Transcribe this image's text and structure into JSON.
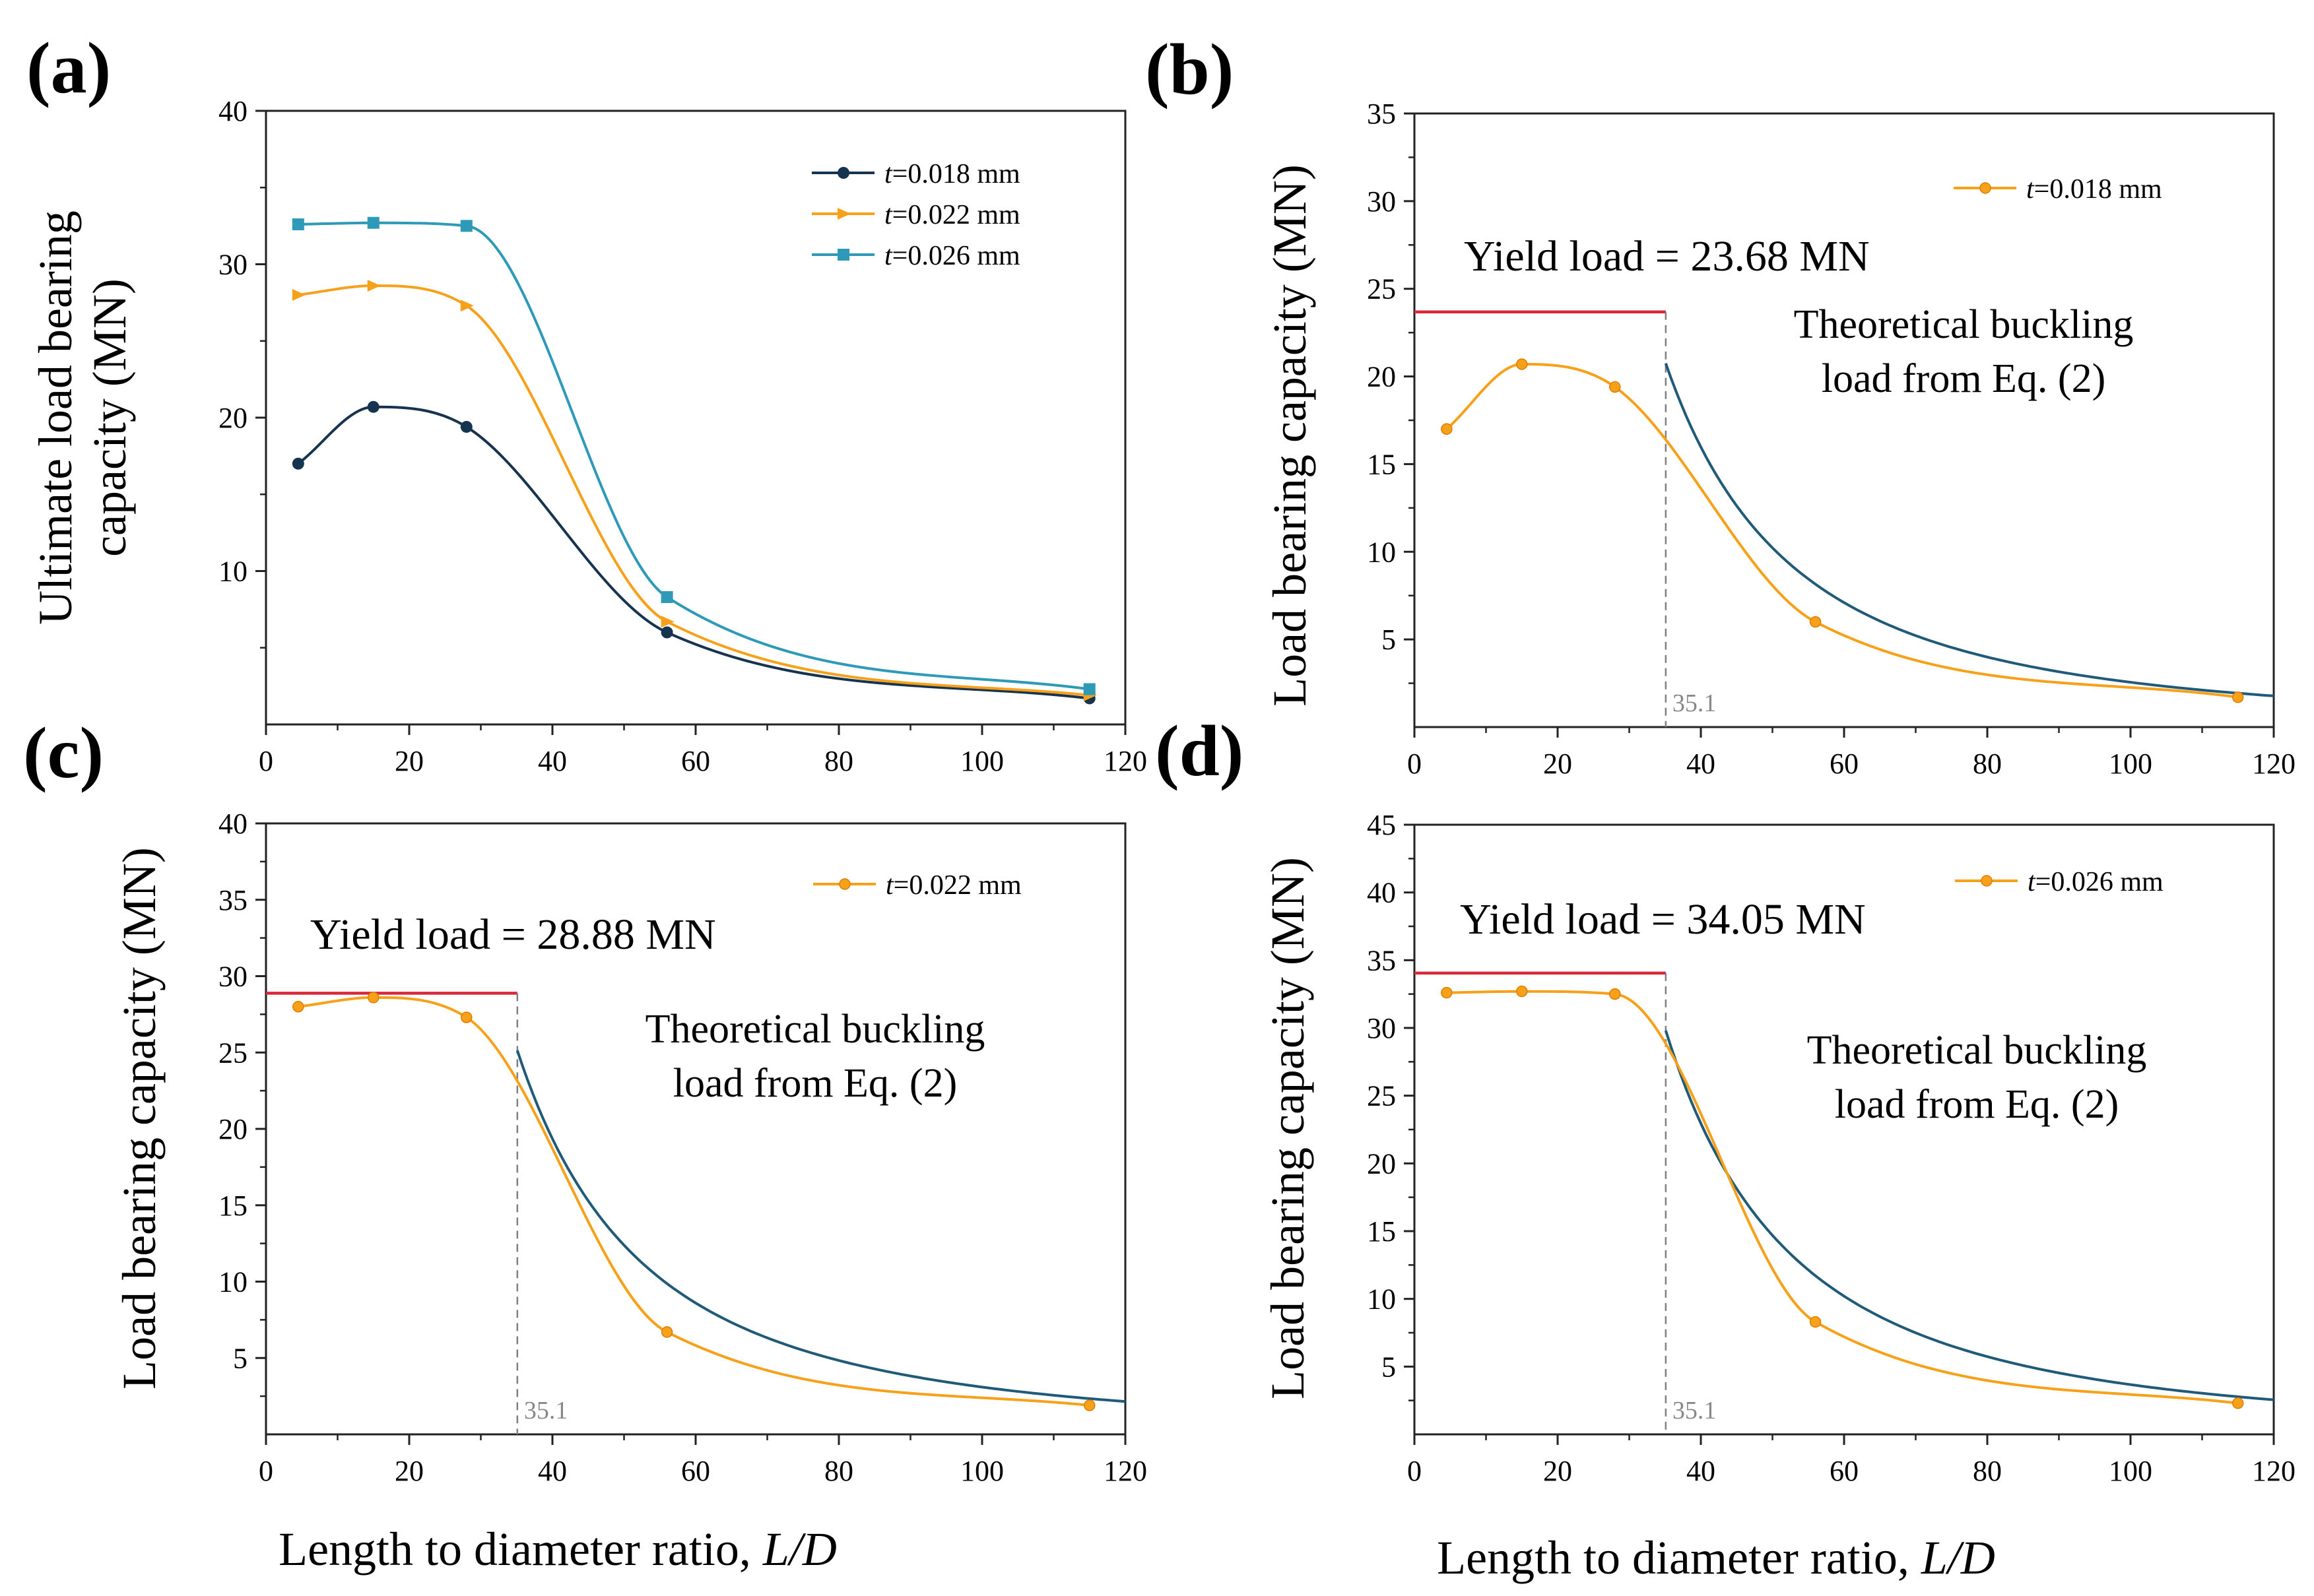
{
  "figure": {
    "xlabel_prefix": "Length to diameter ratio, ",
    "xlabel_var": "L/D"
  },
  "chart_data": [
    {
      "panel": "(a)",
      "type": "line",
      "ylabel_lines": [
        "Ultimate load bearing",
        "capacity (MN)"
      ],
      "xlim": [
        0,
        120
      ],
      "ylim": [
        0,
        40
      ],
      "xticks": [
        "0",
        "20",
        "40",
        "60",
        "80",
        "100",
        "120"
      ],
      "yticks": [
        "10",
        "20",
        "30",
        "40"
      ],
      "x": [
        4.5,
        15,
        28,
        56,
        115
      ],
      "legend_position": "top-right",
      "series": [
        {
          "name": "t=0.018 mm",
          "color": "#16344f",
          "marker": "circle",
          "values": [
            17.0,
            20.7,
            19.4,
            6.0,
            1.7
          ]
        },
        {
          "name": "t=0.022 mm",
          "color": "#f7a11a",
          "marker": "triangle",
          "values": [
            28.0,
            28.6,
            27.3,
            6.7,
            1.9
          ]
        },
        {
          "name": "t=0.026 mm",
          "color": "#2e9ab8",
          "marker": "square",
          "values": [
            32.6,
            32.7,
            32.5,
            8.3,
            2.3
          ]
        }
      ]
    },
    {
      "panel": "(b)",
      "type": "line",
      "ylabel_lines": [
        "Load bearing capacity (MN)"
      ],
      "xlim": [
        0,
        120
      ],
      "ylim": [
        0,
        35
      ],
      "xticks": [
        "0",
        "20",
        "40",
        "60",
        "80",
        "100",
        "120"
      ],
      "yticks": [
        "5",
        "10",
        "15",
        "20",
        "25",
        "30",
        "35"
      ],
      "legend_position": "top-right",
      "series": [
        {
          "name": "t=0.018 mm",
          "color": "#f7a11a",
          "x": [
            4.5,
            15,
            28,
            56,
            115
          ],
          "values": [
            17.0,
            20.7,
            19.4,
            6.0,
            1.7
          ]
        }
      ],
      "yield_load": 23.68,
      "yield_text": "Yield load = 23.68 MN",
      "buckling_text": [
        "Theoretical buckling",
        "load from Eq. (2)"
      ],
      "buckling_curve": {
        "x_start": 35.1,
        "x_end": 120,
        "values_at": {
          "35.1": 20.8,
          "60": 7.1,
          "120": 1.8
        }
      },
      "vline_x": 35.1,
      "vline_label": "35.1"
    },
    {
      "panel": "(c)",
      "type": "line",
      "ylabel_lines": [
        "Load bearing capacity (MN)"
      ],
      "xlim": [
        0,
        120
      ],
      "ylim": [
        0,
        40
      ],
      "xticks": [
        "0",
        "20",
        "40",
        "60",
        "80",
        "100",
        "120"
      ],
      "yticks": [
        "5",
        "10",
        "15",
        "20",
        "25",
        "30",
        "35",
        "40"
      ],
      "legend_position": "top-right",
      "series": [
        {
          "name": "t=0.022 mm",
          "color": "#f7a11a",
          "x": [
            4.5,
            15,
            28,
            56,
            115
          ],
          "values": [
            28.0,
            28.6,
            27.3,
            6.7,
            1.9
          ]
        }
      ],
      "yield_load": 28.88,
      "yield_text": "Yield load = 28.88 MN",
      "buckling_text": [
        "Theoretical buckling",
        "load from Eq. (2)"
      ],
      "buckling_curve": {
        "x_start": 35.1,
        "x_end": 120,
        "values_at": {
          "35.1": 25.3,
          "60": 8.6,
          "120": 2.2
        }
      },
      "vline_x": 35.1,
      "vline_label": "35.1"
    },
    {
      "panel": "(d)",
      "type": "line",
      "ylabel_lines": [
        "Load bearing capacity (MN)"
      ],
      "xlim": [
        0,
        120
      ],
      "ylim": [
        0,
        45
      ],
      "xticks": [
        "0",
        "20",
        "40",
        "60",
        "80",
        "100",
        "120"
      ],
      "yticks": [
        "5",
        "10",
        "15",
        "20",
        "25",
        "30",
        "35",
        "40",
        "45"
      ],
      "legend_position": "top-right",
      "series": [
        {
          "name": "t=0.026 mm",
          "color": "#f7a11a",
          "x": [
            4.5,
            15,
            28,
            56,
            115
          ],
          "values": [
            32.6,
            32.7,
            32.5,
            8.3,
            2.3
          ]
        }
      ],
      "yield_load": 34.05,
      "yield_text": "Yield load = 34.05 MN",
      "buckling_text": [
        "Theoretical buckling",
        "load from Eq. (2)"
      ],
      "buckling_curve": {
        "x_start": 35.1,
        "x_end": 120,
        "values_at": {
          "35.1": 29.8,
          "60": 10.2,
          "120": 2.6
        }
      },
      "vline_x": 35.1,
      "vline_label": "35.1"
    }
  ],
  "colors": {
    "axis": "#222222",
    "yield_line": "#d9283a",
    "buckling_curve": "#1f5a78",
    "vline": "#808080"
  }
}
